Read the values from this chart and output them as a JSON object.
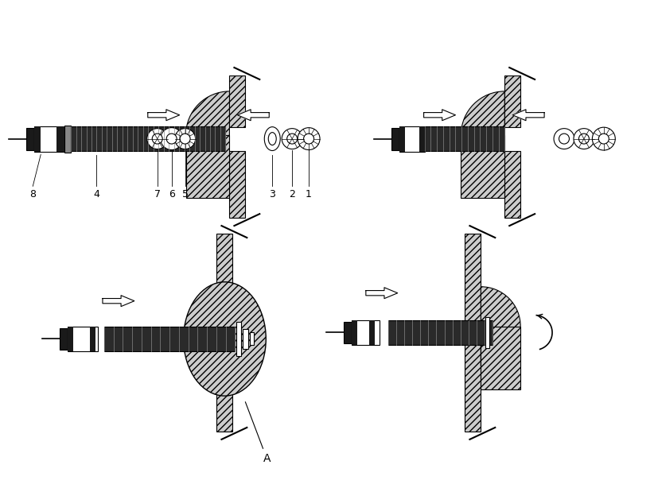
{
  "bg_color": "#ffffff",
  "figsize": [
    8.27,
    6.09
  ],
  "dpi": 100,
  "wall_fc": "#cccccc",
  "coil_fc": "#2a2a2a",
  "coil_line": "#888888",
  "dark_fc": "#1a1a1a",
  "white_fc": "#ffffff",
  "label_fs": 9,
  "hatch": "////",
  "lw": 0.8
}
